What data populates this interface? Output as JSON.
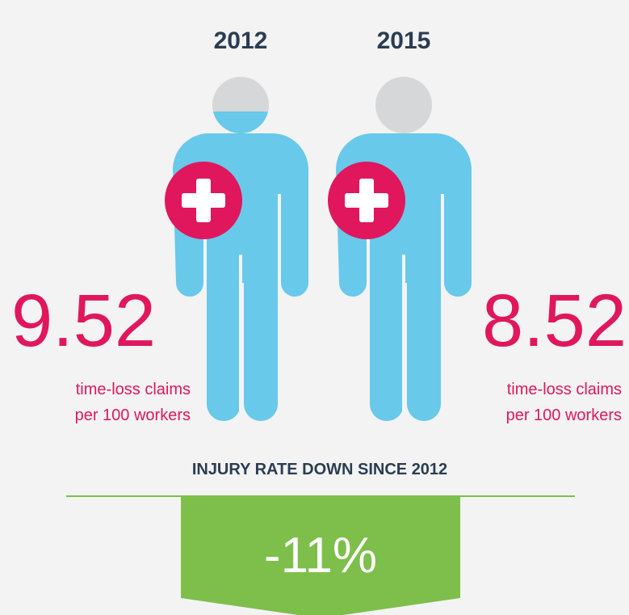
{
  "figures": [
    {
      "year": "2012",
      "rate": "9.52",
      "line1": "time-loss claims",
      "line2": "per 100 workers"
    },
    {
      "year": "2015",
      "rate": "8.52",
      "line1": "time-loss claims",
      "line2": "per 100 workers"
    }
  ],
  "summary": {
    "headline": "INJURY RATE DOWN SINCE 2012",
    "change": "-11%"
  }
}
